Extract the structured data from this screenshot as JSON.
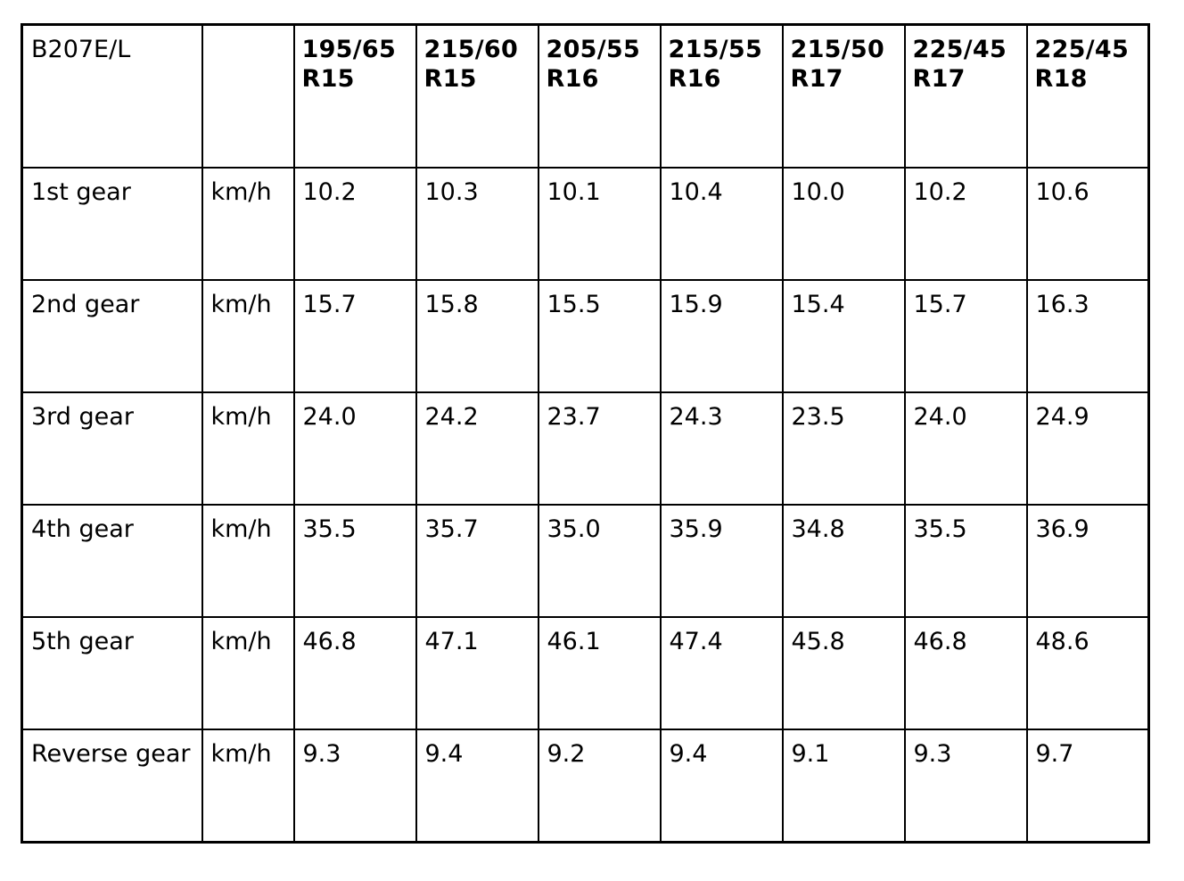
{
  "table": {
    "model": "B207E/L",
    "unit_header": "",
    "tyre_sizes": [
      {
        "size": "195/65",
        "rim": "R15"
      },
      {
        "size": "215/60",
        "rim": "R15"
      },
      {
        "size": "205/55",
        "rim": "R16"
      },
      {
        "size": "215/55",
        "rim": "R16"
      },
      {
        "size": "215/50",
        "rim": "R17"
      },
      {
        "size": "225/45",
        "rim": "R17"
      },
      {
        "size": "225/45",
        "rim": "R18"
      }
    ],
    "rows": [
      {
        "gear": "1st gear",
        "unit": "km/h",
        "values": [
          "10.2",
          "10.3",
          "10.1",
          "10.4",
          "10.0",
          "10.2",
          "10.6"
        ]
      },
      {
        "gear": "2nd gear",
        "unit": "km/h",
        "values": [
          "15.7",
          "15.8",
          "15.5",
          "15.9",
          "15.4",
          "15.7",
          "16.3"
        ]
      },
      {
        "gear": "3rd gear",
        "unit": "km/h",
        "values": [
          "24.0",
          "24.2",
          "23.7",
          "24.3",
          "23.5",
          "24.0",
          "24.9"
        ]
      },
      {
        "gear": "4th gear",
        "unit": "km/h",
        "values": [
          "35.5",
          "35.7",
          "35.0",
          "35.9",
          "34.8",
          "35.5",
          "36.9"
        ]
      },
      {
        "gear": "5th gear",
        "unit": "km/h",
        "values": [
          "46.8",
          "47.1",
          "46.1",
          "47.4",
          "45.8",
          "46.8",
          "48.6"
        ]
      },
      {
        "gear": "Reverse gear",
        "unit": "km/h",
        "values": [
          "9.3",
          "9.4",
          "9.2",
          "9.4",
          "9.1",
          "9.3",
          "9.7"
        ]
      }
    ]
  }
}
